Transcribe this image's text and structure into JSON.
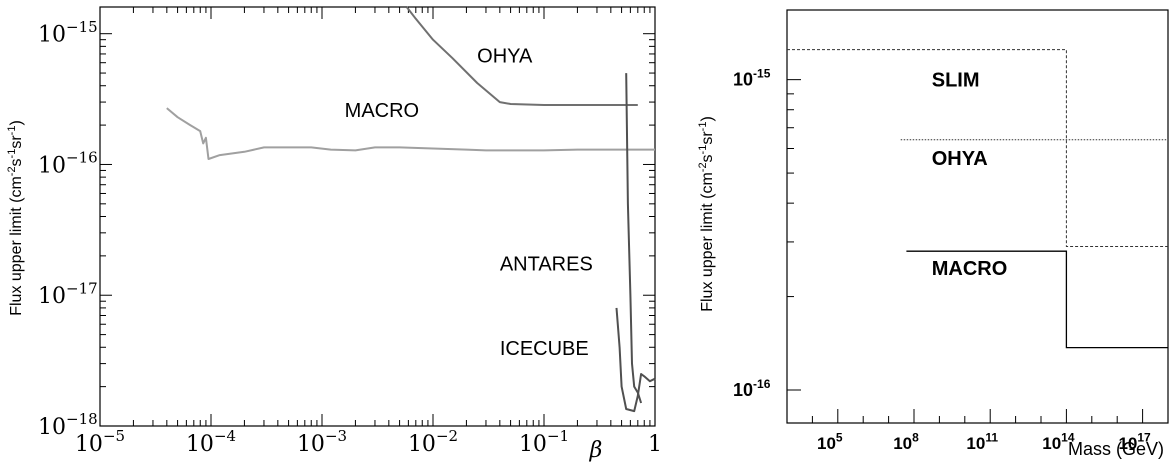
{
  "chart_data": [
    {
      "type": "line",
      "xlabel": "β",
      "ylabel": "Flux upper limit (cm⁻²s⁻¹sr⁻¹)",
      "xscale": "log",
      "yscale": "log",
      "xlim": [
        1e-05,
        1
      ],
      "ylim": [
        1e-18,
        1.6e-15
      ],
      "x_ticks": [
        {
          "value": 1e-05,
          "base": "10",
          "exp": "−5"
        },
        {
          "value": 0.0001,
          "base": "10",
          "exp": "−4"
        },
        {
          "value": 0.001,
          "base": "10",
          "exp": "−3"
        },
        {
          "value": 0.01,
          "base": "10",
          "exp": "−2"
        },
        {
          "value": 0.1,
          "base": "10",
          "exp": "−1"
        },
        {
          "value": 1,
          "base": "1",
          "exp": ""
        }
      ],
      "y_ticks": [
        {
          "value": 1e-18,
          "base": "10",
          "exp": "−18"
        },
        {
          "value": 1e-17,
          "base": "10",
          "exp": "−17"
        },
        {
          "value": 1e-16,
          "base": "10",
          "exp": "−16"
        },
        {
          "value": 1e-15,
          "base": "10",
          "exp": "−15"
        }
      ],
      "series": [
        {
          "name": "MACRO",
          "color": "#a0a0a0",
          "label_at": [
            0.0016,
            2.3e-16
          ],
          "points": [
            [
              4e-05,
              2.7e-16
            ],
            [
              5e-05,
              2.3e-16
            ],
            [
              6.5e-05,
              2e-16
            ],
            [
              8e-05,
              1.8e-16
            ],
            [
              8.5e-05,
              1.45e-16
            ],
            [
              9e-05,
              1.6e-16
            ],
            [
              9.5e-05,
              1.1e-16
            ],
            [
              0.00012,
              1.18e-16
            ],
            [
              0.0002,
              1.25e-16
            ],
            [
              0.0003,
              1.35e-16
            ],
            [
              0.0008,
              1.35e-16
            ],
            [
              0.0012,
              1.3e-16
            ],
            [
              0.002,
              1.28e-16
            ],
            [
              0.003,
              1.35e-16
            ],
            [
              0.005,
              1.35e-16
            ],
            [
              0.02,
              1.3e-16
            ],
            [
              0.03,
              1.28e-16
            ],
            [
              0.1,
              1.28e-16
            ],
            [
              0.2,
              1.3e-16
            ],
            [
              1,
              1.3e-16
            ]
          ]
        },
        {
          "name": "OHYA",
          "color": "#707070",
          "label_at": [
            0.025,
            6e-16
          ],
          "points": [
            [
              0.0058,
              1.6e-15
            ],
            [
              0.007,
              1.3e-15
            ],
            [
              0.01,
              9e-16
            ],
            [
              0.015,
              6.5e-16
            ],
            [
              0.025,
              4.2e-16
            ],
            [
              0.04,
              3e-16
            ],
            [
              0.05,
              2.9e-16
            ],
            [
              0.1,
              2.85e-16
            ],
            [
              0.7,
              2.85e-16
            ]
          ]
        },
        {
          "name": "ANTARES",
          "color": "#505050",
          "label_at": [
            0.04,
            1.55e-17
          ],
          "points": [
            [
              0.55,
              5e-16
            ],
            [
              0.57,
              5e-17
            ],
            [
              0.6,
              1e-17
            ],
            [
              0.62,
              3e-18
            ],
            [
              0.65,
              2e-18
            ],
            [
              0.7,
              1.8e-18
            ],
            [
              0.75,
              1.5e-18
            ]
          ]
        },
        {
          "name": "ICECUBE",
          "color": "#505050",
          "label_at": [
            0.04,
            3.5e-18
          ],
          "points": [
            [
              0.45,
              8e-18
            ],
            [
              0.48,
              4e-18
            ],
            [
              0.5,
              2e-18
            ],
            [
              0.55,
              1.35e-18
            ],
            [
              0.65,
              1.3e-18
            ],
            [
              0.7,
              1.7e-18
            ],
            [
              0.75,
              2.5e-18
            ],
            [
              0.8,
              2.4e-18
            ],
            [
              0.9,
              2.2e-18
            ],
            [
              1,
              2.3e-18
            ]
          ]
        }
      ]
    },
    {
      "type": "line",
      "xlabel": "Mass (GeV)",
      "ylabel": "Flux upper limit (cm⁻²s⁻¹sr⁻¹)",
      "xscale": "log",
      "yscale": "log",
      "xlim": [
        1000.0,
        1e+18
      ],
      "ylim": [
        1e-16,
        1.5e-15
      ],
      "x_ticks": [
        {
          "value": 100000.0,
          "base": "10",
          "exp": "5"
        },
        {
          "value": 100000000.0,
          "base": "10",
          "exp": "8"
        },
        {
          "value": 100000000000.0,
          "base": "10",
          "exp": "11"
        },
        {
          "value": 100000000000000.0,
          "base": "10",
          "exp": "14"
        },
        {
          "value": 1e+17,
          "base": "10",
          "exp": "17"
        }
      ],
      "y_ticks": [
        {
          "value": 1e-16,
          "base": "10",
          "exp": "-16"
        },
        {
          "value": 1e-15,
          "base": "10",
          "exp": "-15"
        }
      ],
      "series": [
        {
          "name": "SLIM",
          "style": "dashed",
          "color": "#333333",
          "label_at": [
            500000000.0,
            9.5e-16
          ],
          "points": [
            [
              1000.0,
              1.25e-15
            ],
            [
              100000000000000.0,
              1.25e-15
            ],
            [
              100000000000000.0,
              2.9e-16
            ],
            [
              1e+18,
              2.9e-16
            ]
          ]
        },
        {
          "name": "OHYA",
          "style": "dotted",
          "color": "#333333",
          "label_at": [
            500000000.0,
            5.3e-16
          ],
          "points": [
            [
              30000000.0,
              6.4e-16
            ],
            [
              1e+18,
              6.4e-16
            ]
          ]
        },
        {
          "name": "MACRO",
          "style": "solid",
          "color": "#000000",
          "label_at": [
            500000000.0,
            2.35e-16
          ],
          "points": [
            [
              50000000.0,
              2.8e-16
            ],
            [
              100000000000000.0,
              2.8e-16
            ],
            [
              100000000000000.0,
              1.37e-16
            ],
            [
              1e+18,
              1.37e-16
            ]
          ]
        }
      ]
    }
  ]
}
